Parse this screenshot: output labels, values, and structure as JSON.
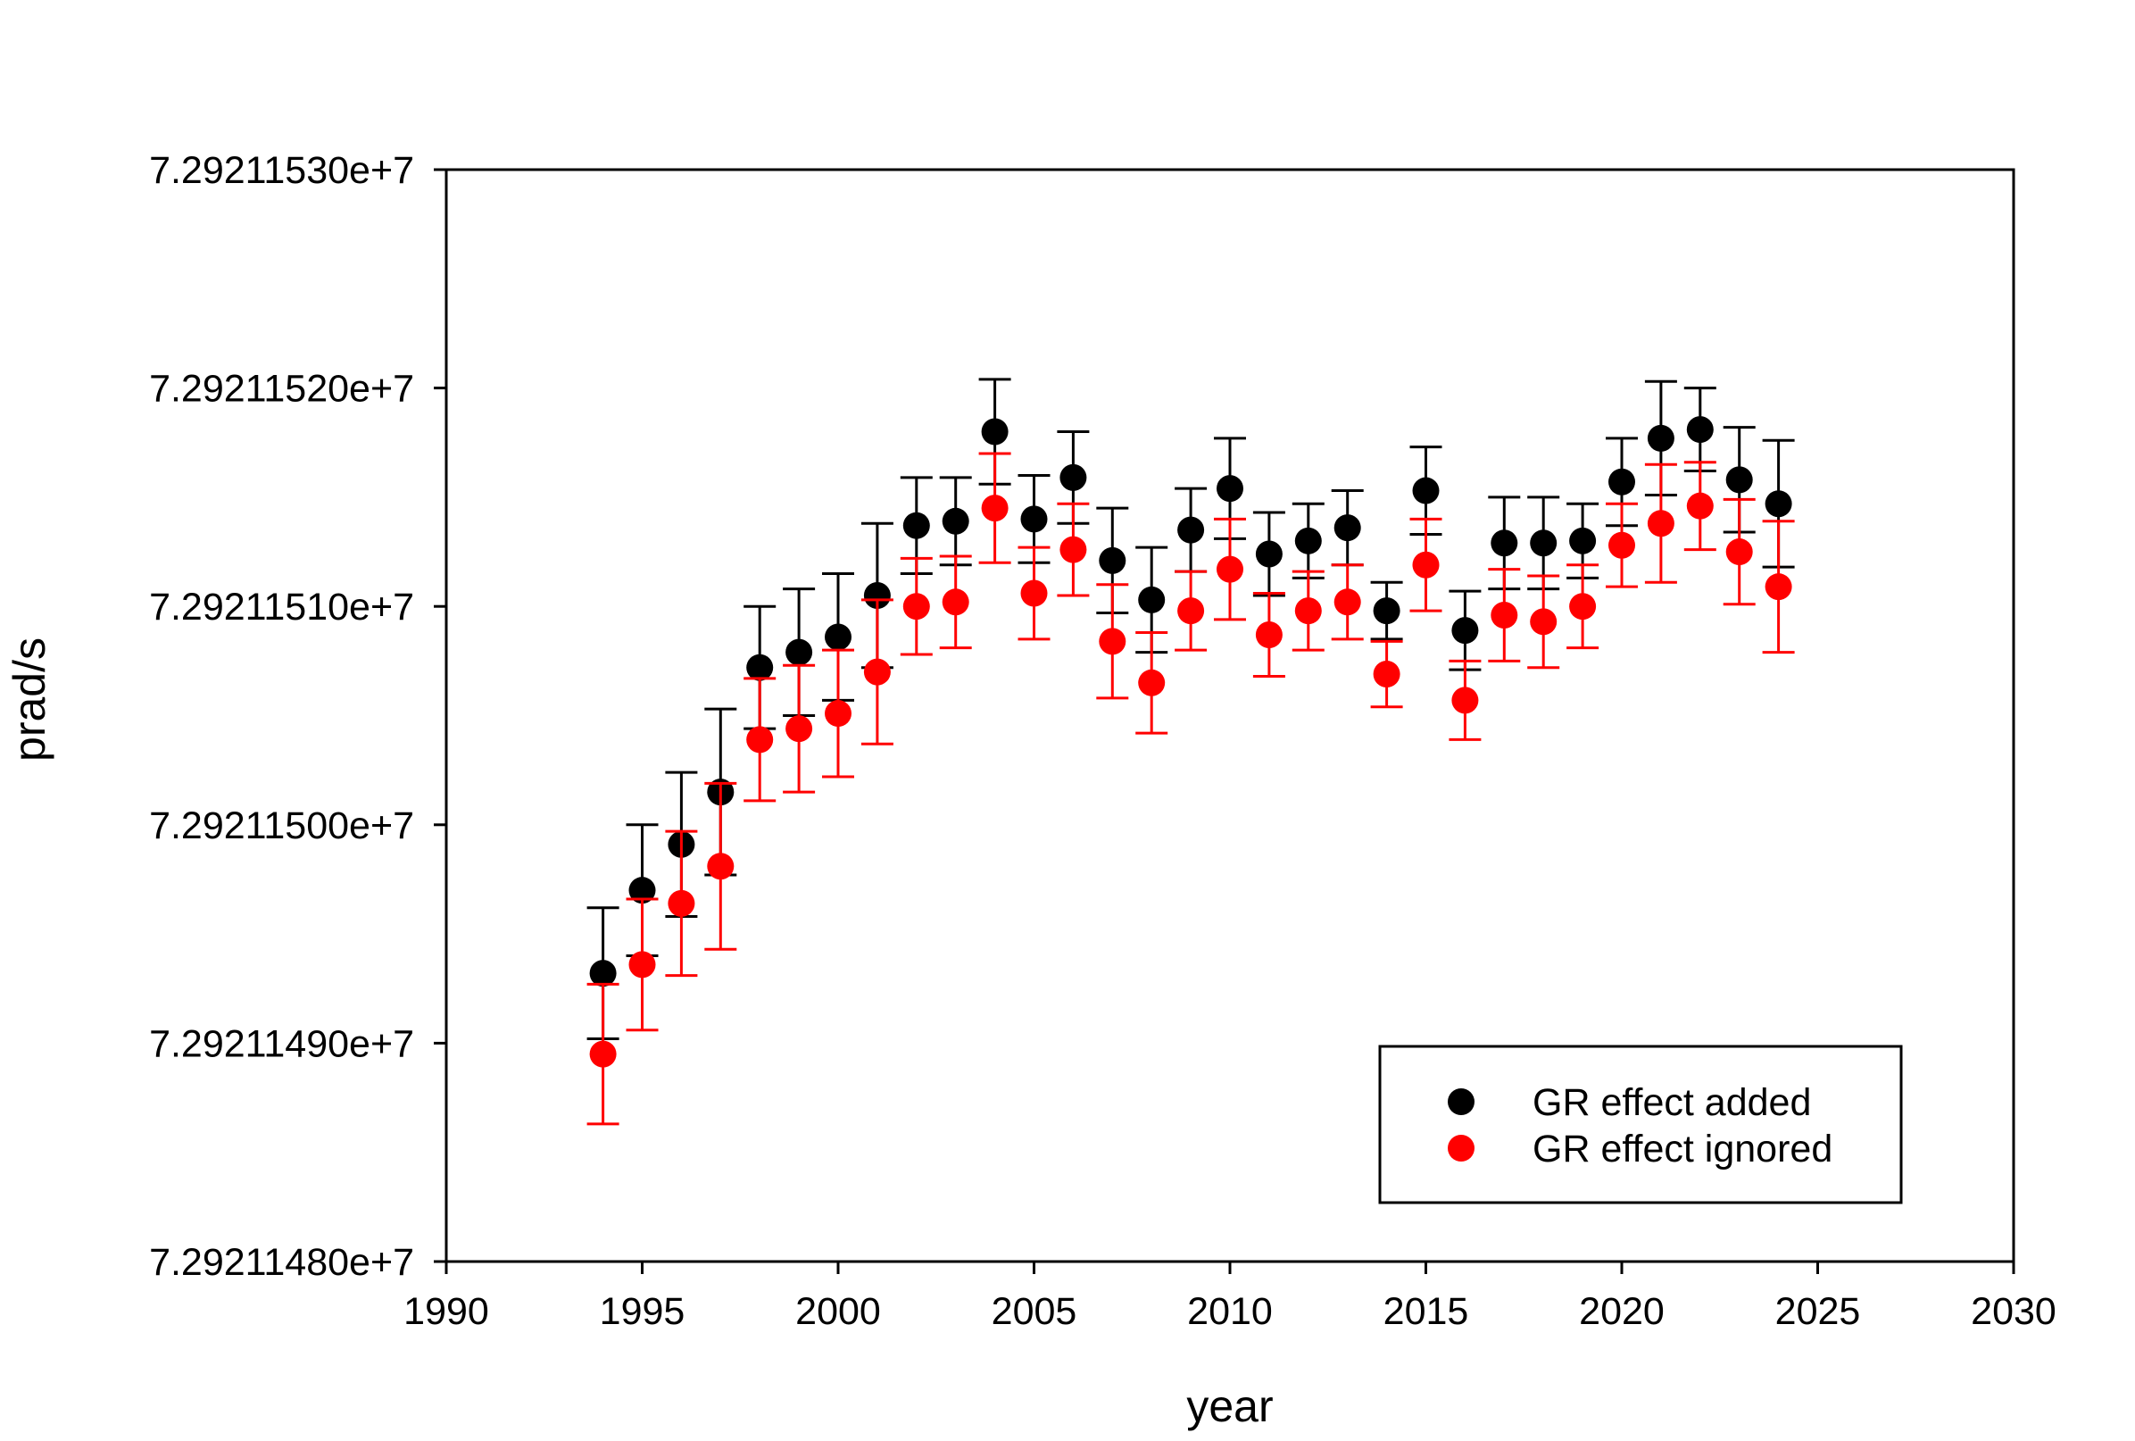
{
  "chart_data": {
    "type": "scatter",
    "title": "",
    "xlabel": "year",
    "ylabel": "prad/s",
    "xlim": [
      1990,
      2030
    ],
    "ylim": [
      72921148.0,
      72921153.0
    ],
    "x_ticks": [
      1990,
      1995,
      2000,
      2005,
      2010,
      2015,
      2020,
      2025,
      2030
    ],
    "x_tick_labels": [
      "1990",
      "1995",
      "2000",
      "2005",
      "2010",
      "2015",
      "2020",
      "2025",
      "2030"
    ],
    "y_ticks": [
      72921148.0,
      72921149.0,
      72921150.0,
      72921151.0,
      72921152.0,
      72921153.0
    ],
    "y_tick_labels": [
      "7.29211480e+7",
      "7.29211490e+7",
      "7.29211500e+7",
      "7.29211510e+7",
      "7.29211520e+7",
      "7.29211530e+7"
    ],
    "grid": false,
    "legend_position": "bottom-right",
    "series": [
      {
        "name": "GR effect added",
        "color": "#000000",
        "x": [
          1994,
          1995,
          1996,
          1997,
          1998,
          1999,
          2000,
          2001,
          2002,
          2003,
          2004,
          2005,
          2006,
          2007,
          2008,
          2009,
          2010,
          2011,
          2012,
          2013,
          2014,
          2015,
          2016,
          2017,
          2018,
          2019,
          2020,
          2021,
          2022,
          2023,
          2024
        ],
        "y": [
          72921149.32,
          72921149.7,
          72921149.91,
          72921150.15,
          72921150.72,
          72921150.79,
          72921150.86,
          72921151.05,
          72921151.37,
          72921151.39,
          72921151.8,
          72921151.4,
          72921151.59,
          72921151.21,
          72921151.03,
          72921151.35,
          72921151.54,
          72921151.24,
          72921151.3,
          72921151.36,
          72921150.98,
          72921151.53,
          72921150.89,
          72921151.29,
          72921151.29,
          72921151.3,
          72921151.57,
          72921151.77,
          72921151.81,
          72921151.58,
          72921151.47
        ],
        "error": [
          0.3,
          0.3,
          0.33,
          0.38,
          0.28,
          0.29,
          0.29,
          0.33,
          0.22,
          0.2,
          0.24,
          0.2,
          0.21,
          0.24,
          0.24,
          0.19,
          0.23,
          0.19,
          0.17,
          0.17,
          0.13,
          0.2,
          0.18,
          0.21,
          0.21,
          0.17,
          0.2,
          0.26,
          0.19,
          0.24,
          0.29
        ]
      },
      {
        "name": "GR effect ignored",
        "color": "#ff0000",
        "x": [
          1994,
          1995,
          1996,
          1997,
          1998,
          1999,
          2000,
          2001,
          2002,
          2003,
          2004,
          2005,
          2006,
          2007,
          2008,
          2009,
          2010,
          2011,
          2012,
          2013,
          2014,
          2015,
          2016,
          2017,
          2018,
          2019,
          2020,
          2021,
          2022,
          2023,
          2024
        ],
        "y": [
          72921148.95,
          72921149.36,
          72921149.64,
          72921149.81,
          72921150.39,
          72921150.44,
          72921150.51,
          72921150.7,
          72921151.0,
          72921151.02,
          72921151.45,
          72921151.06,
          72921151.26,
          72921150.84,
          72921150.65,
          72921150.98,
          72921151.17,
          72921150.87,
          72921150.98,
          72921151.02,
          72921150.69,
          72921151.19,
          72921150.57,
          72921150.96,
          72921150.93,
          72921151.0,
          72921151.28,
          72921151.38,
          72921151.46,
          72921151.25,
          72921151.09
        ],
        "error": [
          0.32,
          0.3,
          0.33,
          0.38,
          0.28,
          0.29,
          0.29,
          0.33,
          0.22,
          0.21,
          0.25,
          0.21,
          0.21,
          0.26,
          0.23,
          0.18,
          0.23,
          0.19,
          0.18,
          0.17,
          0.15,
          0.21,
          0.18,
          0.21,
          0.21,
          0.19,
          0.19,
          0.27,
          0.2,
          0.24,
          0.3
        ]
      }
    ]
  }
}
